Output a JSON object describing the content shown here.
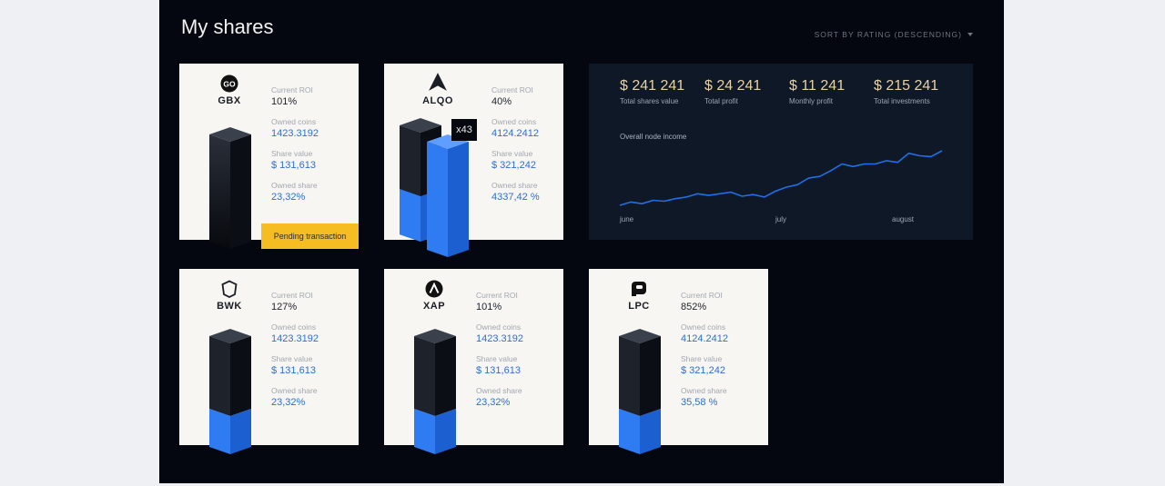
{
  "page": {
    "title": "My shares",
    "sort_label": "SORT BY RATING (DESCENDING)"
  },
  "labels": {
    "roi": "Current ROI",
    "coins": "Owned coins",
    "value": "Share value",
    "share": "Owned share"
  },
  "cards": [
    {
      "name": "GBX",
      "icon": "gbx-logo-icon",
      "roi": "101%",
      "coins": "1423.3192",
      "value": "$ 131,613",
      "share": "23,32%",
      "fill_fraction": 0.0
    },
    {
      "name": "ALQO",
      "icon": "alqo-logo-icon",
      "roi": "40%",
      "coins": "4124.2412",
      "value": "$ 321,242",
      "share": "4337,42 %",
      "multiplier": "x43"
    },
    {
      "name": "BWK",
      "icon": "bwk-logo-icon",
      "roi": "127%",
      "coins": "1423.3192",
      "value": "$ 131,613",
      "share": "23,32%",
      "fill_fraction": 0.33
    },
    {
      "name": "XAP",
      "icon": "xap-logo-icon",
      "roi": "101%",
      "coins": "1423.3192",
      "value": "$ 131,613",
      "share": "23,32%",
      "fill_fraction": 0.33
    },
    {
      "name": "LPC",
      "icon": "lpc-logo-icon",
      "roi": "852%",
      "coins": "4124.2412",
      "value": "$ 321,242",
      "share": "35,58 %",
      "fill_fraction": 0.33
    }
  ],
  "pending_label": "Pending transaction",
  "summary": {
    "metrics": [
      {
        "value": "$ 241 241",
        "label": "Total shares value"
      },
      {
        "value": "$ 24 241",
        "label": "Total profit"
      },
      {
        "value": "$ 11 241",
        "label": "Monthly profit"
      },
      {
        "value": "$ 215 241",
        "label": "Total investments"
      }
    ],
    "income_label": "Overall node income",
    "months": [
      "june",
      "july",
      "august"
    ],
    "income_series": [
      10,
      14,
      12,
      16,
      15,
      18,
      20,
      24,
      22,
      24,
      26,
      21,
      23,
      20,
      27,
      32,
      35,
      43,
      45,
      52,
      60,
      57,
      60,
      60,
      64,
      62,
      73,
      70,
      69,
      76
    ]
  },
  "colors": {
    "accent": "#2b6fd6",
    "gold": "#e9d2a4",
    "pending": "#f5bd22"
  }
}
